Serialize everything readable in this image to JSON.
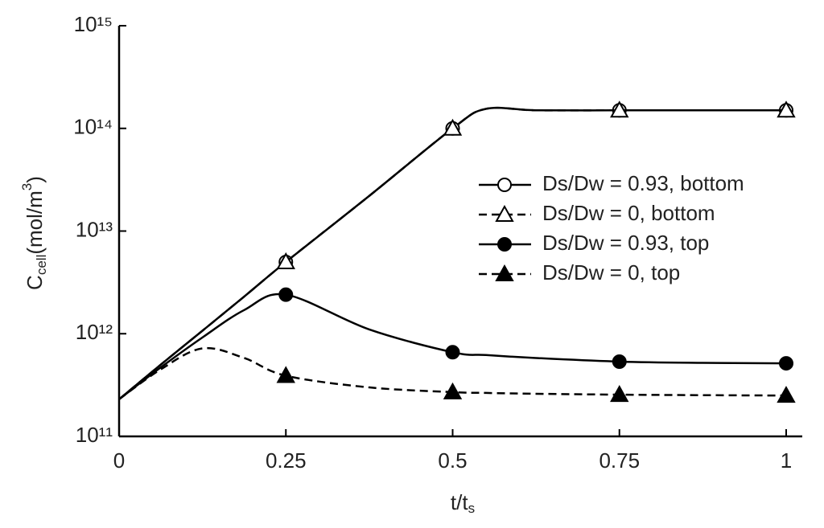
{
  "chart_data": {
    "type": "line",
    "ylabel": [
      "C",
      "cell",
      "(mol/m",
      "3",
      ")"
    ],
    "xlabel": [
      "t/t",
      "s"
    ],
    "x": [
      0,
      0.0625,
      0.125,
      0.1875,
      0.25,
      0.375,
      0.5,
      0.55,
      0.625,
      0.75,
      0.875,
      1
    ],
    "marker_x": [
      0.25,
      0.5,
      0.75,
      1
    ],
    "series": [
      {
        "name": "Ds/Dw = 0.93, bottom",
        "color": "#000000",
        "line_style": "solid",
        "marker": "open-circle",
        "values": [
          230000000000,
          500000000000,
          1070000000000,
          2300000000000,
          5000000000000,
          22000000000000,
          100000000000000,
          155000000000000,
          150000000000000,
          150000000000000,
          150000000000000,
          150000000000000
        ]
      },
      {
        "name": "Ds/Dw = 0, bottom",
        "color": "#000000",
        "line_style": "dashed",
        "marker": "open-triangle",
        "values": [
          230000000000,
          500000000000,
          1070000000000,
          2300000000000,
          5000000000000,
          22000000000000,
          100000000000000,
          155000000000000,
          150000000000000,
          150000000000000,
          150000000000000,
          150000000000000
        ]
      },
      {
        "name": "Ds/Dw = 0.93, top",
        "color": "#000000",
        "line_style": "solid",
        "marker": "filled-circle",
        "values": [
          230000000000,
          470000000000,
          920000000000,
          1700000000000,
          2400000000000,
          1100000000000,
          660000000000,
          620000000000,
          580000000000,
          535000000000,
          520000000000,
          515000000000
        ]
      },
      {
        "name": "Ds/Dw = 0, top",
        "color": "#000000",
        "line_style": "dashed",
        "marker": "filled-triangle",
        "values": [
          230000000000,
          450000000000,
          720000000000,
          580000000000,
          390000000000,
          300000000000,
          270000000000,
          265000000000,
          260000000000,
          255000000000,
          252000000000,
          250000000000
        ]
      }
    ],
    "xlim": [
      0,
      1
    ],
    "xticks": [
      0,
      0.25,
      0.5,
      0.75,
      1
    ],
    "ylim": [
      100000000000,
      1000000000000000
    ],
    "log_y": true,
    "yticks": [
      {
        "value": 100000000000,
        "label": "10¹¹"
      },
      {
        "value": 1000000000000,
        "label": "10¹²"
      },
      {
        "value": 10000000000000,
        "label": "10¹³"
      },
      {
        "value": 100000000000000,
        "label": "10¹⁴"
      },
      {
        "value": 1000000000000000,
        "label": "10¹⁵"
      }
    ],
    "legend": "right"
  }
}
